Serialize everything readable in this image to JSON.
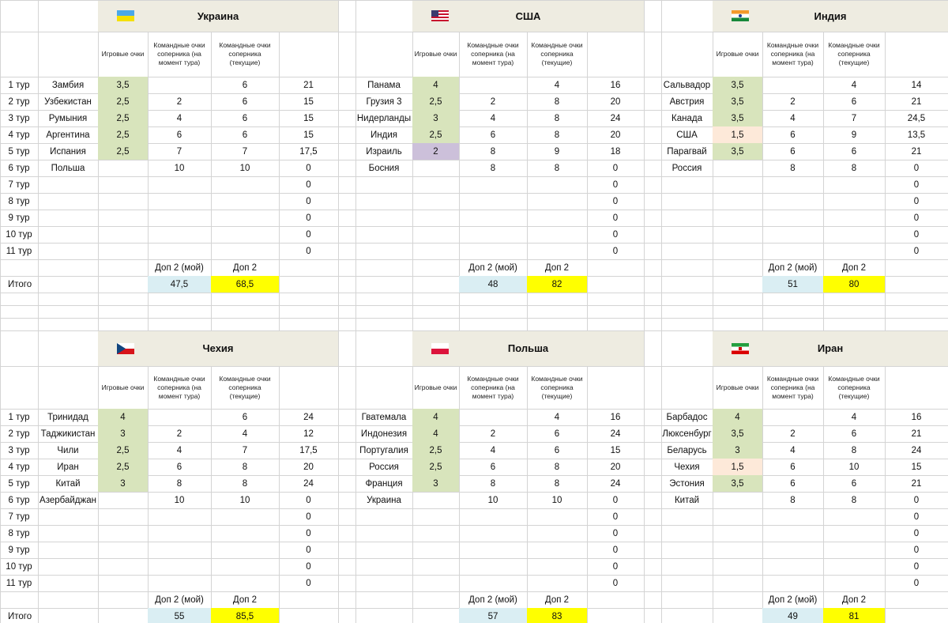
{
  "rounds": [
    "1 тур",
    "2 тур",
    "3 тур",
    "4 тур",
    "5 тур",
    "6 тур",
    "7 тур",
    "8 тур",
    "9 тур",
    "10 тур",
    "11 тур"
  ],
  "total_label": "Итого",
  "headers": {
    "game_points": "Игровые очки",
    "opp_at_round": "Командные очки соперника (на момент тура)",
    "opp_current": "Командные очки соперника (текущие)"
  },
  "dop_labels": {
    "mine": "Доп 2 (мой)",
    "other": "Доп 2"
  },
  "colors": {
    "win": "#d8e4bc",
    "draw_low": "#ccc0da",
    "loss": "#fde9d9",
    "dop_mine": "#daeef3",
    "dop_other": "#ffff00",
    "header_band": "#eeece1"
  },
  "panels": [
    {
      "title": "Украина",
      "flag": "ukraine-flag",
      "dop_mine": "47,5",
      "dop_other": "68,5",
      "rows": [
        {
          "opp": "Замбия",
          "game": "3,5",
          "color": "win",
          "at": "",
          "cur": "6",
          "total": "21"
        },
        {
          "opp": "Узбекистан",
          "game": "2,5",
          "color": "win",
          "at": "2",
          "cur": "6",
          "total": "15"
        },
        {
          "opp": "Румыния",
          "game": "2,5",
          "color": "win",
          "at": "4",
          "cur": "6",
          "total": "15"
        },
        {
          "opp": "Аргентина",
          "game": "2,5",
          "color": "win",
          "at": "6",
          "cur": "6",
          "total": "15"
        },
        {
          "opp": "Испания",
          "game": "2,5",
          "color": "win",
          "at": "7",
          "cur": "7",
          "total": "17,5"
        },
        {
          "opp": "Польша",
          "game": "",
          "color": "",
          "at": "10",
          "cur": "10",
          "total": "0"
        },
        {
          "opp": "",
          "game": "",
          "color": "",
          "at": "",
          "cur": "",
          "total": "0"
        },
        {
          "opp": "",
          "game": "",
          "color": "",
          "at": "",
          "cur": "",
          "total": "0"
        },
        {
          "opp": "",
          "game": "",
          "color": "",
          "at": "",
          "cur": "",
          "total": "0"
        },
        {
          "opp": "",
          "game": "",
          "color": "",
          "at": "",
          "cur": "",
          "total": "0"
        },
        {
          "opp": "",
          "game": "",
          "color": "",
          "at": "",
          "cur": "",
          "total": "0"
        }
      ]
    },
    {
      "title": "США",
      "flag": "usa-flag",
      "dop_mine": "48",
      "dop_other": "82",
      "rows": [
        {
          "opp": "Панама",
          "game": "4",
          "color": "win",
          "at": "",
          "cur": "4",
          "total": "16"
        },
        {
          "opp": "Грузия 3",
          "game": "2,5",
          "color": "win",
          "at": "2",
          "cur": "8",
          "total": "20"
        },
        {
          "opp": "Нидерланды",
          "game": "3",
          "color": "win",
          "at": "4",
          "cur": "8",
          "total": "24"
        },
        {
          "opp": "Индия",
          "game": "2,5",
          "color": "win",
          "at": "6",
          "cur": "8",
          "total": "20"
        },
        {
          "opp": "Израиль",
          "game": "2",
          "color": "draw_low",
          "at": "8",
          "cur": "9",
          "total": "18"
        },
        {
          "opp": "Босния",
          "game": "",
          "color": "",
          "at": "8",
          "cur": "8",
          "total": "0"
        },
        {
          "opp": "",
          "game": "",
          "color": "",
          "at": "",
          "cur": "",
          "total": "0"
        },
        {
          "opp": "",
          "game": "",
          "color": "",
          "at": "",
          "cur": "",
          "total": "0"
        },
        {
          "opp": "",
          "game": "",
          "color": "",
          "at": "",
          "cur": "",
          "total": "0"
        },
        {
          "opp": "",
          "game": "",
          "color": "",
          "at": "",
          "cur": "",
          "total": "0"
        },
        {
          "opp": "",
          "game": "",
          "color": "",
          "at": "",
          "cur": "",
          "total": "0"
        }
      ]
    },
    {
      "title": "Индия",
      "flag": "india-flag",
      "dop_mine": "51",
      "dop_other": "80",
      "rows": [
        {
          "opp": "Сальвадор",
          "game": "3,5",
          "color": "win",
          "at": "",
          "cur": "4",
          "total": "14"
        },
        {
          "opp": "Австрия",
          "game": "3,5",
          "color": "win",
          "at": "2",
          "cur": "6",
          "total": "21"
        },
        {
          "opp": "Канада",
          "game": "3,5",
          "color": "win",
          "at": "4",
          "cur": "7",
          "total": "24,5"
        },
        {
          "opp": "США",
          "game": "1,5",
          "color": "loss",
          "at": "6",
          "cur": "9",
          "total": "13,5"
        },
        {
          "opp": "Парагвай",
          "game": "3,5",
          "color": "win",
          "at": "6",
          "cur": "6",
          "total": "21"
        },
        {
          "opp": "Россия",
          "game": "",
          "color": "",
          "at": "8",
          "cur": "8",
          "total": "0"
        },
        {
          "opp": "",
          "game": "",
          "color": "",
          "at": "",
          "cur": "",
          "total": "0"
        },
        {
          "opp": "",
          "game": "",
          "color": "",
          "at": "",
          "cur": "",
          "total": "0"
        },
        {
          "opp": "",
          "game": "",
          "color": "",
          "at": "",
          "cur": "",
          "total": "0"
        },
        {
          "opp": "",
          "game": "",
          "color": "",
          "at": "",
          "cur": "",
          "total": "0"
        },
        {
          "opp": "",
          "game": "",
          "color": "",
          "at": "",
          "cur": "",
          "total": "0"
        }
      ]
    },
    {
      "title": "Чехия",
      "flag": "czech-flag",
      "dop_mine": "55",
      "dop_other": "85,5",
      "rows": [
        {
          "opp": "Тринидад",
          "game": "4",
          "color": "win",
          "at": "",
          "cur": "6",
          "total": "24"
        },
        {
          "opp": "Таджикистан",
          "game": "3",
          "color": "win",
          "at": "2",
          "cur": "4",
          "total": "12"
        },
        {
          "opp": "Чили",
          "game": "2,5",
          "color": "win",
          "at": "4",
          "cur": "7",
          "total": "17,5"
        },
        {
          "opp": "Иран",
          "game": "2,5",
          "color": "win",
          "at": "6",
          "cur": "8",
          "total": "20"
        },
        {
          "opp": "Китай",
          "game": "3",
          "color": "win",
          "at": "8",
          "cur": "8",
          "total": "24"
        },
        {
          "opp": "Азербайджан",
          "game": "",
          "color": "",
          "at": "10",
          "cur": "10",
          "total": "0"
        },
        {
          "opp": "",
          "game": "",
          "color": "",
          "at": "",
          "cur": "",
          "total": "0"
        },
        {
          "opp": "",
          "game": "",
          "color": "",
          "at": "",
          "cur": "",
          "total": "0"
        },
        {
          "opp": "",
          "game": "",
          "color": "",
          "at": "",
          "cur": "",
          "total": "0"
        },
        {
          "opp": "",
          "game": "",
          "color": "",
          "at": "",
          "cur": "",
          "total": "0"
        },
        {
          "opp": "",
          "game": "",
          "color": "",
          "at": "",
          "cur": "",
          "total": "0"
        }
      ]
    },
    {
      "title": "Польша",
      "flag": "poland-flag",
      "dop_mine": "57",
      "dop_other": "83",
      "rows": [
        {
          "opp": "Гватемала",
          "game": "4",
          "color": "win",
          "at": "",
          "cur": "4",
          "total": "16"
        },
        {
          "opp": "Индонезия",
          "game": "4",
          "color": "win",
          "at": "2",
          "cur": "6",
          "total": "24"
        },
        {
          "opp": "Португалия",
          "game": "2,5",
          "color": "win",
          "at": "4",
          "cur": "6",
          "total": "15"
        },
        {
          "opp": "Россия",
          "game": "2,5",
          "color": "win",
          "at": "6",
          "cur": "8",
          "total": "20"
        },
        {
          "opp": "Франция",
          "game": "3",
          "color": "win",
          "at": "8",
          "cur": "8",
          "total": "24"
        },
        {
          "opp": "Украина",
          "game": "",
          "color": "",
          "at": "10",
          "cur": "10",
          "total": "0"
        },
        {
          "opp": "",
          "game": "",
          "color": "",
          "at": "",
          "cur": "",
          "total": "0"
        },
        {
          "opp": "",
          "game": "",
          "color": "",
          "at": "",
          "cur": "",
          "total": "0"
        },
        {
          "opp": "",
          "game": "",
          "color": "",
          "at": "",
          "cur": "",
          "total": "0"
        },
        {
          "opp": "",
          "game": "",
          "color": "",
          "at": "",
          "cur": "",
          "total": "0"
        },
        {
          "opp": "",
          "game": "",
          "color": "",
          "at": "",
          "cur": "",
          "total": "0"
        }
      ]
    },
    {
      "title": "Иран",
      "flag": "iran-flag",
      "dop_mine": "49",
      "dop_other": "81",
      "rows": [
        {
          "opp": "Барбадос",
          "game": "4",
          "color": "win",
          "at": "",
          "cur": "4",
          "total": "16"
        },
        {
          "opp": "Люксенбург",
          "game": "3,5",
          "color": "win",
          "at": "2",
          "cur": "6",
          "total": "21"
        },
        {
          "opp": "Беларусь",
          "game": "3",
          "color": "win",
          "at": "4",
          "cur": "8",
          "total": "24"
        },
        {
          "opp": "Чехия",
          "game": "1,5",
          "color": "loss",
          "at": "6",
          "cur": "10",
          "total": "15"
        },
        {
          "opp": "Эстония",
          "game": "3,5",
          "color": "win",
          "at": "6",
          "cur": "6",
          "total": "21"
        },
        {
          "opp": "Китай",
          "game": "",
          "color": "",
          "at": "8",
          "cur": "8",
          "total": "0"
        },
        {
          "opp": "",
          "game": "",
          "color": "",
          "at": "",
          "cur": "",
          "total": "0"
        },
        {
          "opp": "",
          "game": "",
          "color": "",
          "at": "",
          "cur": "",
          "total": "0"
        },
        {
          "opp": "",
          "game": "",
          "color": "",
          "at": "",
          "cur": "",
          "total": "0"
        },
        {
          "opp": "",
          "game": "",
          "color": "",
          "at": "",
          "cur": "",
          "total": "0"
        },
        {
          "opp": "",
          "game": "",
          "color": "",
          "at": "",
          "cur": "",
          "total": "0"
        }
      ]
    }
  ]
}
